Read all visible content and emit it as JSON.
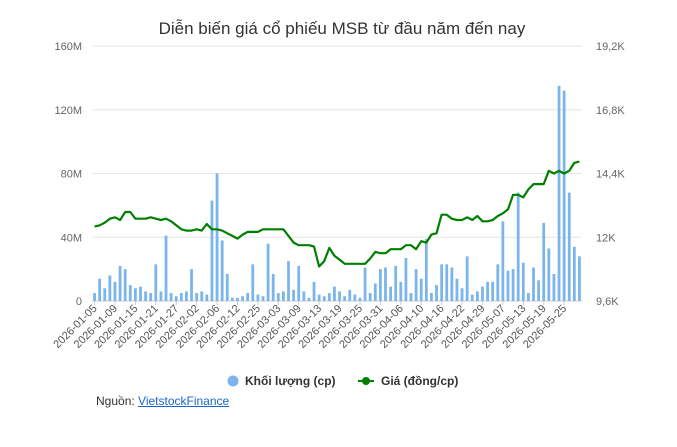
{
  "chart_data": {
    "type": "bar+line",
    "title": "Diễn biến giá cổ phiếu MSB từ đầu năm đến nay",
    "left_axis": {
      "ticks": [
        "0",
        "40M",
        "80M",
        "120M",
        "160M"
      ],
      "ylim": [
        0,
        160000000
      ]
    },
    "right_axis": {
      "ticks": [
        "9,6K",
        "12K",
        "14,4K",
        "16,8K",
        "19,2K"
      ],
      "ylim": [
        9600,
        19200
      ]
    },
    "x_tick_labels": [
      "2026-01-05",
      "2026-01-09",
      "2026-01-15",
      "2026-01-21",
      "2026-01-27",
      "2026-02-02",
      "2026-02-06",
      "2026-02-12",
      "2026-02-25",
      "2026-03-03",
      "2026-03-09",
      "2026-03-13",
      "2026-03-19",
      "2026-03-25",
      "2026-03-31",
      "2026-04-06",
      "2026-04-10",
      "2026-04-16",
      "2026-04-22",
      "2026-04-29",
      "2026-05-07",
      "2026-05-13",
      "2026-05-19",
      "2026-05-25"
    ],
    "x_tick_every": 4,
    "series": [
      {
        "name": "Khối lượng (cp)",
        "kind": "bar",
        "color": "#7cb5ec",
        "values": [
          5000000,
          14000000,
          8000000,
          16000000,
          12000000,
          22000000,
          20000000,
          10000000,
          8000000,
          9000000,
          6000000,
          5000000,
          23000000,
          6000000,
          41000000,
          5000000,
          3000000,
          5000000,
          6000000,
          20000000,
          5000000,
          6000000,
          4000000,
          63000000,
          80000000,
          38000000,
          17000000,
          2000000,
          2000000,
          3000000,
          5000000,
          23000000,
          4000000,
          3000000,
          36000000,
          17000000,
          5000000,
          6000000,
          25000000,
          7000000,
          22000000,
          6000000,
          2000000,
          12000000,
          4000000,
          3000000,
          5000000,
          9000000,
          6000000,
          3000000,
          7000000,
          4000000,
          2000000,
          21000000,
          5000000,
          11000000,
          20000000,
          21000000,
          9000000,
          22000000,
          12000000,
          27000000,
          5000000,
          20000000,
          14000000,
          39000000,
          5000000,
          10000000,
          23000000,
          23000000,
          21000000,
          14000000,
          8000000,
          28000000,
          4000000,
          6000000,
          9000000,
          12000000,
          12000000,
          23000000,
          50000000,
          19000000,
          20000000,
          68000000,
          24000000,
          5000000,
          21000000,
          13000000,
          49000000,
          33000000,
          17000000,
          135000000,
          132000000,
          68000000,
          34000000,
          28000000
        ],
        "note": "daily volume read approximately from bars"
      },
      {
        "name": "Giá (đồng/cp)",
        "kind": "line",
        "color": "#008000",
        "values": [
          12400,
          12450,
          12550,
          12700,
          12750,
          12650,
          12950,
          12950,
          12700,
          12700,
          12700,
          12750,
          12700,
          12650,
          12700,
          12600,
          12450,
          12300,
          12250,
          12250,
          12300,
          12250,
          12500,
          12300,
          12300,
          12250,
          12150,
          12050,
          11950,
          12100,
          12200,
          12200,
          12200,
          12300,
          12300,
          12300,
          12300,
          12300,
          12050,
          11800,
          11700,
          11700,
          11700,
          11650,
          10900,
          11100,
          11600,
          11300,
          11150,
          11000,
          11000,
          11000,
          11000,
          11000,
          11200,
          11450,
          11400,
          11400,
          11550,
          11550,
          11550,
          11700,
          11700,
          11550,
          11850,
          11800,
          12100,
          12150,
          12850,
          12850,
          12700,
          12650,
          12650,
          12750,
          12650,
          12800,
          12600,
          12600,
          12650,
          12800,
          12900,
          13050,
          13600,
          13600,
          13500,
          13800,
          14000,
          14000,
          14000,
          14500,
          14400,
          14500,
          14400,
          14500,
          14800,
          14850
        ]
      }
    ],
    "legend": {
      "position": "bottom",
      "items": [
        {
          "label": "Khối lượng (cp)",
          "color": "#7cb5ec",
          "marker": "circle"
        },
        {
          "label": "Giá (đồng/cp)",
          "color": "#008000",
          "marker": "line-circle"
        }
      ]
    },
    "grid": true
  },
  "source": {
    "prefix": "Nguồn:",
    "link_text": "VietstockFinance"
  }
}
